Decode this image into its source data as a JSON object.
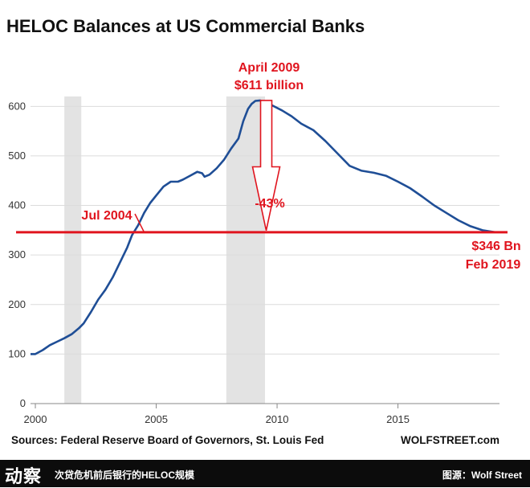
{
  "title": "HELOC Balances at US Commercial Banks",
  "source_note": "Sources: Federal Reserve Board of Governors, St. Louis Fed",
  "credit": "WOLFSTREET.com",
  "footer": {
    "logo": "动察",
    "caption": "次贷危机前后银行的HELOC规模",
    "source": "图源：Wolf Street"
  },
  "colors": {
    "line": "#1f4e96",
    "annotation": "#e0141e",
    "recession": "#e3e3e3",
    "grid": "#dcdcdc"
  },
  "chart_data": {
    "type": "line",
    "title": "HELOC Balances at US Commercial Banks",
    "xlabel": "",
    "ylabel": "",
    "xlim": [
      1999.8,
      2019.2
    ],
    "ylim": [
      0,
      620
    ],
    "grid": "horizontal",
    "x_ticks": [
      2000,
      2005,
      2010,
      2015
    ],
    "y_ticks": [
      0,
      100,
      200,
      300,
      400,
      500,
      600
    ],
    "recession_bands": [
      [
        2001.2,
        2001.9
      ],
      [
        2007.9,
        2009.5
      ]
    ],
    "series": [
      {
        "x": [
          1999.8,
          2000.0,
          2000.3,
          2000.6,
          2000.9,
          2001.2,
          2001.5,
          2001.8,
          2002.0,
          2002.3,
          2002.6,
          2002.9,
          2003.2,
          2003.5,
          2003.8,
          2004.0,
          2004.25,
          2004.5,
          2004.75,
          2005.0,
          2005.3,
          2005.6,
          2005.9,
          2006.1,
          2006.4,
          2006.7,
          2006.9,
          2007.0,
          2007.2,
          2007.5,
          2007.8,
          2008.1,
          2008.4,
          2008.6,
          2008.8,
          2008.95,
          2009.1,
          2009.3,
          2009.5,
          2009.8,
          2010.2,
          2010.6,
          2011.0,
          2011.5,
          2012.0,
          2012.5,
          2013.0,
          2013.5,
          2014.0,
          2014.5,
          2015.0,
          2015.5,
          2016.0,
          2016.5,
          2017.0,
          2017.5,
          2018.0,
          2018.5,
          2019.0
        ],
        "y": [
          100,
          100,
          108,
          118,
          125,
          132,
          140,
          152,
          162,
          185,
          210,
          230,
          255,
          285,
          315,
          340,
          360,
          385,
          405,
          420,
          438,
          448,
          448,
          452,
          460,
          468,
          465,
          458,
          462,
          475,
          492,
          515,
          535,
          570,
          595,
          605,
          611,
          612,
          608,
          602,
          592,
          580,
          565,
          552,
          530,
          505,
          480,
          470,
          466,
          460,
          448,
          435,
          418,
          400,
          385,
          370,
          358,
          350,
          346
        ]
      }
    ],
    "annotations": [
      {
        "label": "April 2009",
        "x": 2009.25,
        "y": 611
      },
      {
        "label": "$611 billion",
        "x": 2009.25,
        "y": 611
      },
      {
        "label": "Jul 2004",
        "x": 2004.5,
        "y": 346
      },
      {
        "label": "-43%",
        "x": 2009.5,
        "y": 420
      },
      {
        "label": "$346 Bn",
        "x": 2019.0,
        "y": 346
      },
      {
        "label": "Feb 2019",
        "x": 2019.0,
        "y": 346
      }
    ],
    "reference_line": {
      "y": 346
    }
  }
}
